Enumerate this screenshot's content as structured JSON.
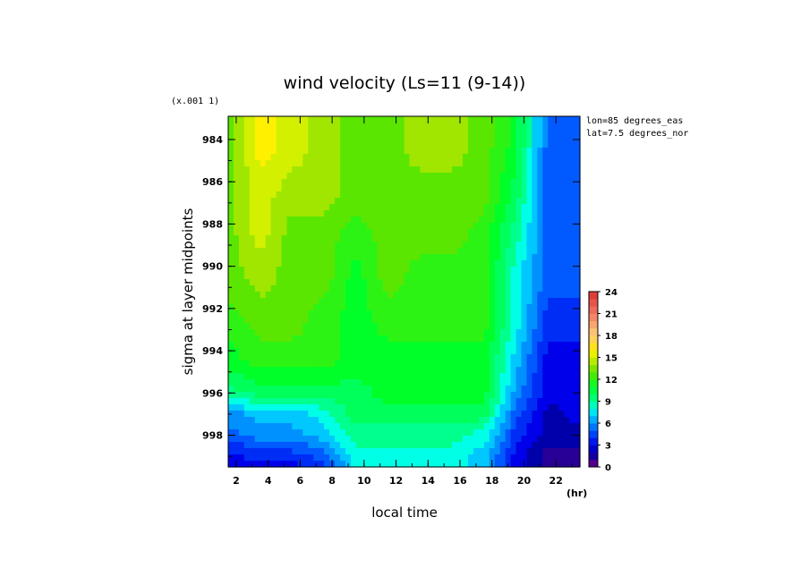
{
  "chart_data": {
    "type": "heatmap",
    "title": "wind velocity (Ls=11 (9-14))",
    "xlabel": "local time",
    "x_unit": "(hr)",
    "ylabel": "sigma at layer midpoints",
    "y_scale_note": "(x.001 1)",
    "annotations": [
      "lon=85 degrees_eas",
      "lat=7.5 degrees_nor"
    ],
    "xlim": [
      1.5,
      23.5
    ],
    "ylim": [
      999.5,
      982.9
    ],
    "x_ticks": [
      "2",
      "4",
      "6",
      "8",
      "10",
      "12",
      "14",
      "16",
      "18",
      "20",
      "22"
    ],
    "y_ticks": [
      "984",
      "986",
      "988",
      "990",
      "992",
      "994",
      "996",
      "998"
    ],
    "x": [
      1.5,
      3.5,
      5.5,
      7.5,
      9.5,
      11.5,
      13.5,
      15.5,
      17.5,
      19.5,
      21.5,
      23.5
    ],
    "y": [
      982.9,
      984.5,
      986.5,
      988.5,
      990.5,
      992.5,
      994.5,
      996.0,
      997.0,
      998.0,
      999.0,
      999.5
    ],
    "z": [
      [
        13,
        16,
        15,
        14,
        13,
        13,
        14,
        14,
        13,
        11,
        5,
        5
      ],
      [
        13,
        16,
        15,
        14,
        13,
        13,
        14,
        14,
        13,
        11,
        5,
        5
      ],
      [
        13,
        15,
        14,
        14,
        13,
        13,
        13,
        13,
        13,
        10,
        5,
        5
      ],
      [
        13,
        15,
        13,
        13,
        12,
        13,
        13,
        13,
        12,
        9,
        5,
        5
      ],
      [
        13,
        14,
        13,
        13,
        11,
        13,
        12,
        12,
        12,
        8,
        5,
        5
      ],
      [
        12,
        13,
        13,
        12,
        11,
        12,
        12,
        12,
        12,
        8,
        4,
        4
      ],
      [
        11,
        12,
        12,
        12,
        11,
        11,
        11,
        11,
        11,
        7,
        3,
        3
      ],
      [
        9,
        10,
        10,
        10,
        10,
        11,
        11,
        11,
        11,
        6,
        3,
        3
      ],
      [
        6,
        7,
        7,
        8,
        10,
        10,
        10,
        10,
        10,
        5,
        2,
        3
      ],
      [
        5,
        6,
        6,
        7,
        9,
        9,
        9,
        9,
        8,
        4,
        2,
        2
      ],
      [
        3,
        4,
        4,
        5,
        8,
        8,
        8,
        8,
        7,
        3,
        1,
        1
      ],
      [
        3,
        3,
        3,
        4,
        8,
        8,
        8,
        8,
        7,
        3,
        1,
        1
      ]
    ],
    "colorbar": {
      "min": 0,
      "max": 24,
      "step": 1,
      "labels": [
        "0",
        "3",
        "6",
        "9",
        "12",
        "15",
        "18",
        "21",
        "24"
      ]
    },
    "grid": false
  }
}
